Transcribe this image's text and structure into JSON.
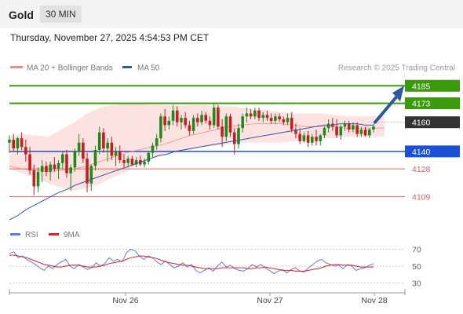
{
  "header": {
    "instrument": "Gold",
    "timeframe": "30 MIN",
    "datetime": "Thursday, November 27, 2025 4:54:53 PM CET"
  },
  "legend": {
    "main": [
      {
        "label": "MA 20 + Bollinger Bands",
        "color": "#f28b82"
      },
      {
        "label": "MA 50",
        "color": "#2c5aa0"
      }
    ],
    "rsi": [
      {
        "label": "RSI",
        "color": "#5b7fd9"
      },
      {
        "label": "9MA",
        "color": "#e02020"
      }
    ],
    "credit": "Research © 2025 Trading Central"
  },
  "colors": {
    "up": "#1e8a1e",
    "down": "#c31f1f",
    "resistance": "#3a9a0b",
    "support": "#1a4fd6",
    "support_minor": "#e06060",
    "current": "#333333",
    "arrow": "#2c5aa0",
    "bollinger_fill": "#fde2e2"
  },
  "chart_data": [
    {
      "type": "candlestick",
      "title": "Gold",
      "ylim": [
        4092,
        4190
      ],
      "levels": [
        {
          "value": 4185,
          "label": "4185",
          "kind": "resistance"
        },
        {
          "value": 4173,
          "label": "4173",
          "kind": "resistance"
        },
        {
          "value": 4160,
          "label": "4160",
          "kind": "current"
        },
        {
          "value": 4140,
          "label": "4140",
          "kind": "support"
        },
        {
          "value": 4128,
          "label": "4128",
          "kind": "support-minor"
        },
        {
          "value": 4109,
          "label": "4109",
          "kind": "support-minor"
        }
      ],
      "x_ticks": [
        "Nov 26",
        "Nov 27",
        "Nov 28"
      ],
      "ohlc": [
        [
          4146,
          4151,
          4139,
          4148
        ],
        [
          4148,
          4152,
          4140,
          4142
        ],
        [
          4142,
          4150,
          4138,
          4149
        ],
        [
          4149,
          4153,
          4141,
          4143
        ],
        [
          4143,
          4148,
          4133,
          4138
        ],
        [
          4138,
          4143,
          4124,
          4127
        ],
        [
          4127,
          4131,
          4110,
          4116
        ],
        [
          4116,
          4129,
          4112,
          4126
        ],
        [
          4126,
          4134,
          4119,
          4130
        ],
        [
          4130,
          4133,
          4123,
          4126
        ],
        [
          4126,
          4133,
          4120,
          4131
        ],
        [
          4131,
          4136,
          4126,
          4128
        ],
        [
          4128,
          4134,
          4121,
          4132
        ],
        [
          4132,
          4140,
          4128,
          4138
        ],
        [
          4138,
          4141,
          4122,
          4125
        ],
        [
          4125,
          4131,
          4113,
          4129
        ],
        [
          4129,
          4142,
          4126,
          4140
        ],
        [
          4140,
          4152,
          4137,
          4146
        ],
        [
          4146,
          4149,
          4132,
          4135
        ],
        [
          4135,
          4139,
          4112,
          4118
        ],
        [
          4118,
          4131,
          4113,
          4130
        ],
        [
          4130,
          4144,
          4127,
          4141
        ],
        [
          4141,
          4157,
          4138,
          4153
        ],
        [
          4153,
          4156,
          4139,
          4142
        ],
        [
          4142,
          4149,
          4133,
          4146
        ],
        [
          4146,
          4150,
          4134,
          4137
        ],
        [
          4137,
          4143,
          4130,
          4140
        ],
        [
          4140,
          4144,
          4132,
          4134
        ],
        [
          4134,
          4138,
          4129,
          4132
        ],
        [
          4132,
          4137,
          4129,
          4135
        ],
        [
          4135,
          4137,
          4130,
          4131
        ],
        [
          4131,
          4136,
          4129,
          4134
        ],
        [
          4134,
          4137,
          4130,
          4131
        ],
        [
          4131,
          4135,
          4129,
          4133
        ],
        [
          4133,
          4140,
          4131,
          4139
        ],
        [
          4139,
          4146,
          4136,
          4144
        ],
        [
          4144,
          4152,
          4141,
          4149
        ],
        [
          4149,
          4166,
          4146,
          4164
        ],
        [
          4164,
          4169,
          4154,
          4158
        ],
        [
          4158,
          4164,
          4155,
          4161
        ],
        [
          4161,
          4172,
          4158,
          4168
        ],
        [
          4168,
          4171,
          4157,
          4160
        ],
        [
          4160,
          4165,
          4155,
          4163
        ],
        [
          4163,
          4167,
          4156,
          4158
        ],
        [
          4158,
          4161,
          4151,
          4154
        ],
        [
          4154,
          4165,
          4152,
          4163
        ],
        [
          4163,
          4166,
          4157,
          4160
        ],
        [
          4160,
          4168,
          4158,
          4165
        ],
        [
          4165,
          4167,
          4159,
          4161
        ],
        [
          4161,
          4164,
          4155,
          4158
        ],
        [
          4158,
          4173,
          4156,
          4170
        ],
        [
          4170,
          4172,
          4155,
          4157
        ],
        [
          4157,
          4162,
          4143,
          4150
        ],
        [
          4150,
          4166,
          4147,
          4164
        ],
        [
          4164,
          4166,
          4150,
          4153
        ],
        [
          4153,
          4156,
          4138,
          4145
        ],
        [
          4145,
          4159,
          4142,
          4156
        ],
        [
          4156,
          4166,
          4153,
          4164
        ],
        [
          4164,
          4170,
          4160,
          4166
        ],
        [
          4166,
          4169,
          4162,
          4164
        ],
        [
          4164,
          4170,
          4162,
          4168
        ],
        [
          4168,
          4170,
          4161,
          4163
        ],
        [
          4163,
          4167,
          4160,
          4165
        ],
        [
          4165,
          4168,
          4161,
          4163
        ],
        [
          4163,
          4166,
          4159,
          4161
        ],
        [
          4161,
          4166,
          4159,
          4164
        ],
        [
          4164,
          4166,
          4160,
          4162
        ],
        [
          4162,
          4164,
          4158,
          4160
        ],
        [
          4160,
          4166,
          4158,
          4163
        ],
        [
          4163,
          4167,
          4153,
          4155
        ],
        [
          4155,
          4159,
          4149,
          4152
        ],
        [
          4152,
          4156,
          4145,
          4147
        ],
        [
          4147,
          4153,
          4146,
          4151
        ],
        [
          4151,
          4154,
          4143,
          4146
        ],
        [
          4146,
          4152,
          4144,
          4150
        ],
        [
          4150,
          4155,
          4144,
          4147
        ],
        [
          4147,
          4152,
          4144,
          4151
        ],
        [
          4151,
          4157,
          4149,
          4156
        ],
        [
          4156,
          4162,
          4153,
          4159
        ],
        [
          4159,
          4163,
          4154,
          4157
        ],
        [
          4157,
          4162,
          4149,
          4151
        ],
        [
          4151,
          4158,
          4148,
          4157
        ],
        [
          4157,
          4161,
          4154,
          4159
        ],
        [
          4159,
          4161,
          4153,
          4155
        ],
        [
          4155,
          4160,
          4153,
          4158
        ],
        [
          4158,
          4160,
          4150,
          4152
        ],
        [
          4152,
          4157,
          4150,
          4155
        ],
        [
          4155,
          4157,
          4150,
          4151
        ],
        [
          4151,
          4156,
          4149,
          4155
        ],
        [
          4155,
          4159,
          4153,
          4157
        ]
      ],
      "ma50": [
        4093,
        4096,
        4100,
        4103,
        4106,
        4109,
        4112,
        4114,
        4117,
        4119,
        4121,
        4123,
        4125,
        4127,
        4129,
        4131,
        4133,
        4135,
        4137,
        4138,
        4140,
        4141,
        4142,
        4143,
        4144,
        4145,
        4146,
        4147,
        4148,
        4149,
        4150,
        4151,
        4152,
        4153,
        4154,
        4155,
        4156,
        4157,
        4158,
        4158,
        4159,
        4159,
        4159,
        4158,
        4158
      ],
      "ma20": [
        4130,
        4128,
        4127,
        4126,
        4127,
        4128,
        4130,
        4133,
        4136,
        4139,
        4141,
        4143,
        4145,
        4148,
        4151,
        4153,
        4155,
        4157,
        4158,
        4159,
        4159,
        4159,
        4158,
        4157,
        4157,
        4157,
        4156,
        4156,
        4156,
        4156
      ],
      "bb_upper": [
        4150,
        4152,
        4151,
        4150,
        4155,
        4160,
        4166,
        4170,
        4172,
        4173,
        4173,
        4172,
        4172,
        4171,
        4172,
        4172,
        4171,
        4171,
        4170,
        4169,
        4168,
        4167,
        4166,
        4166,
        4166,
        4165,
        4164,
        4164,
        4164,
        4164
      ],
      "bb_lower": [
        4128,
        4125,
        4122,
        4118,
        4115,
        4113,
        4115,
        4118,
        4122,
        4126,
        4132,
        4136,
        4138,
        4140,
        4141,
        4143,
        4144,
        4145,
        4146,
        4146,
        4146,
        4146,
        4147,
        4148,
        4149,
        4149,
        4150,
        4150,
        4150,
        4150
      ],
      "forecast_arrow": {
        "from": 4160,
        "to": 4185
      }
    },
    {
      "type": "line",
      "title": "RSI",
      "ylim": [
        23,
        77
      ],
      "y_ticks": [
        70,
        50,
        30
      ],
      "series": [
        {
          "name": "RSI",
          "values": [
            65,
            67,
            60,
            62,
            58,
            55,
            52,
            48,
            45,
            50,
            47,
            52,
            55,
            58,
            50,
            47,
            52,
            49,
            46,
            48,
            54,
            50,
            53,
            60,
            56,
            58,
            55,
            66,
            70,
            68,
            62,
            58,
            62,
            60,
            55,
            52,
            56,
            52,
            48,
            50,
            54,
            49,
            52,
            45,
            42,
            45,
            48,
            44,
            50,
            55,
            49,
            51,
            47,
            45,
            44,
            47,
            52,
            49,
            52,
            48,
            45,
            41,
            44,
            46,
            42,
            46,
            48,
            44,
            43,
            48,
            52,
            56,
            58,
            54,
            52,
            50,
            51,
            47,
            52,
            50,
            45,
            47,
            48,
            51,
            53
          ]
        },
        {
          "name": "9MA",
          "values": [
            63,
            63,
            62,
            61,
            60,
            58,
            56,
            54,
            52,
            51,
            50,
            49,
            49,
            50,
            51,
            51,
            51,
            50,
            49,
            49,
            49,
            50,
            51,
            53,
            54,
            55,
            56,
            58,
            60,
            61,
            62,
            62,
            61,
            60,
            59,
            57,
            55,
            54,
            53,
            52,
            51,
            51,
            50,
            49,
            48,
            47,
            47,
            47,
            47,
            48,
            48,
            48,
            48,
            48,
            48,
            47,
            47,
            48,
            48,
            49,
            48,
            47,
            46,
            45,
            45,
            45,
            44,
            44,
            44,
            45,
            46,
            47,
            48,
            50,
            51,
            52,
            52,
            51,
            51,
            51,
            50,
            49,
            49,
            49,
            49
          ]
        }
      ]
    }
  ]
}
